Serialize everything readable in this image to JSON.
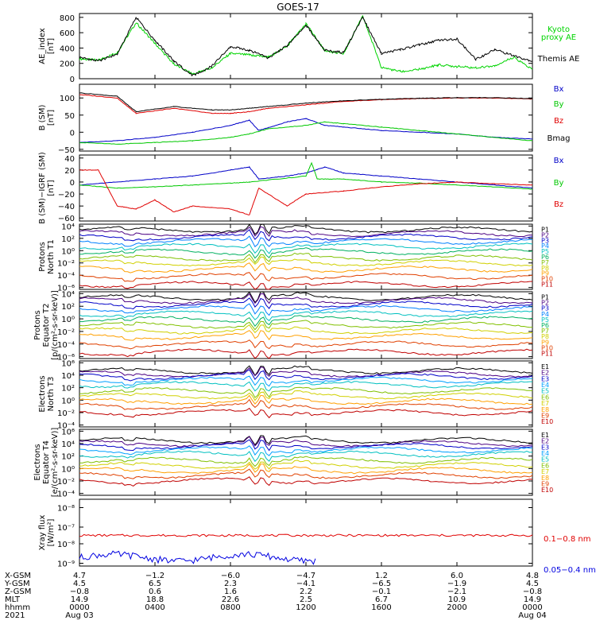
{
  "title": "GOES-17",
  "chart_data": [
    {
      "type": "line",
      "id": "ae",
      "ylabel": "AE_index\n[nT]",
      "ylim": [
        0,
        850
      ],
      "log": false,
      "ticks": [
        "800",
        "600",
        "400",
        "200",
        "0"
      ],
      "tick_values": [
        800,
        600,
        400,
        200,
        0
      ],
      "legend": [
        "Kyoto\nproxy AE",
        "Themis AE"
      ],
      "series": [
        {
          "name": "Kyoto proxy AE",
          "color": "#00d400",
          "points": [
            [
              0,
              260
            ],
            [
              1,
              240
            ],
            [
              2,
              340
            ],
            [
              3,
              730
            ],
            [
              4,
              460
            ],
            [
              5,
              190
            ],
            [
              6,
              60
            ],
            [
              7,
              140
            ],
            [
              8,
              330
            ],
            [
              9,
              310
            ],
            [
              10,
              280
            ],
            [
              11,
              420
            ],
            [
              12,
              720
            ],
            [
              13,
              360
            ],
            [
              14,
              330
            ],
            [
              15,
              820
            ],
            [
              16,
              150
            ],
            [
              17,
              90
            ],
            [
              18,
              120
            ],
            [
              19,
              180
            ],
            [
              20,
              160
            ],
            [
              21,
              140
            ],
            [
              22,
              170
            ],
            [
              23,
              280
            ],
            [
              24,
              120
            ]
          ]
        },
        {
          "name": "Themis AE",
          "color": "#000000",
          "points": [
            [
              0,
              280
            ],
            [
              1,
              230
            ],
            [
              2,
              320
            ],
            [
              3,
              800
            ],
            [
              4,
              500
            ],
            [
              5,
              230
            ],
            [
              6,
              40
            ],
            [
              7,
              160
            ],
            [
              8,
              420
            ],
            [
              9,
              370
            ],
            [
              10,
              270
            ],
            [
              11,
              430
            ],
            [
              12,
              700
            ],
            [
              13,
              370
            ],
            [
              14,
              340
            ],
            [
              15,
              800
            ],
            [
              16,
              330
            ],
            [
              17,
              380
            ],
            [
              18,
              440
            ],
            [
              19,
              500
            ],
            [
              20,
              520
            ],
            [
              21,
              250
            ],
            [
              22,
              380
            ],
            [
              23,
              300
            ],
            [
              24,
              230
            ]
          ]
        }
      ]
    },
    {
      "type": "line",
      "id": "bsm",
      "ylabel": "B (SM)\n[nT]",
      "ylim": [
        -55,
        140
      ],
      "log": false,
      "ticks": [
        "100",
        "50",
        "0",
        "−50"
      ],
      "tick_values": [
        100,
        50,
        0,
        -50
      ],
      "legend": [
        "Bx",
        "By",
        "Bz",
        "Bmag"
      ],
      "series": [
        {
          "name": "Bx",
          "color": "#0000c8",
          "points": [
            [
              0,
              -30
            ],
            [
              2,
              -25
            ],
            [
              4,
              -15
            ],
            [
              6,
              0
            ],
            [
              8,
              20
            ],
            [
              9,
              35
            ],
            [
              9.5,
              5
            ],
            [
              11,
              30
            ],
            [
              12,
              40
            ],
            [
              13,
              20
            ],
            [
              14,
              15
            ],
            [
              16,
              5
            ],
            [
              18,
              0
            ],
            [
              20,
              -5
            ],
            [
              22,
              -15
            ],
            [
              24,
              -20
            ]
          ]
        },
        {
          "name": "By",
          "color": "#00c800",
          "points": [
            [
              0,
              -30
            ],
            [
              2,
              -35
            ],
            [
              4,
              -30
            ],
            [
              6,
              -25
            ],
            [
              8,
              -15
            ],
            [
              9,
              -5
            ],
            [
              10,
              10
            ],
            [
              12,
              20
            ],
            [
              13,
              30
            ],
            [
              14,
              25
            ],
            [
              16,
              15
            ],
            [
              18,
              5
            ],
            [
              20,
              -5
            ],
            [
              22,
              -15
            ],
            [
              24,
              -25
            ]
          ]
        },
        {
          "name": "Bz",
          "color": "#e00000",
          "points": [
            [
              0,
              110
            ],
            [
              2,
              100
            ],
            [
              3,
              55
            ],
            [
              5,
              70
            ],
            [
              7,
              55
            ],
            [
              8,
              55
            ],
            [
              9,
              60
            ],
            [
              10,
              70
            ],
            [
              12,
              80
            ],
            [
              14,
              90
            ],
            [
              16,
              95
            ],
            [
              18,
              98
            ],
            [
              20,
              100
            ],
            [
              22,
              100
            ],
            [
              24,
              97
            ]
          ]
        },
        {
          "name": "Bmag",
          "color": "#000000",
          "points": [
            [
              0,
              115
            ],
            [
              2,
              105
            ],
            [
              3,
              60
            ],
            [
              5,
              75
            ],
            [
              7,
              65
            ],
            [
              8,
              65
            ],
            [
              9,
              70
            ],
            [
              10,
              75
            ],
            [
              12,
              85
            ],
            [
              14,
              92
            ],
            [
              16,
              96
            ],
            [
              18,
              99
            ],
            [
              20,
              101
            ],
            [
              22,
              101
            ],
            [
              24,
              98
            ]
          ]
        }
      ]
    },
    {
      "type": "line",
      "id": "bigrf",
      "ylabel": "B (SM)−IGRF (SM)\n[nT]",
      "ylim": [
        -65,
        45
      ],
      "log": false,
      "ticks": [
        "40",
        "20",
        "0",
        "−20",
        "−40",
        "−60"
      ],
      "tick_values": [
        40,
        20,
        0,
        -20,
        -40,
        -60
      ],
      "legend": [
        "Bx",
        "By",
        "Bz"
      ],
      "series": [
        {
          "name": "Bx",
          "color": "#0000c8",
          "points": [
            [
              0,
              -5
            ],
            [
              2,
              0
            ],
            [
              4,
              5
            ],
            [
              6,
              10
            ],
            [
              8,
              20
            ],
            [
              9,
              25
            ],
            [
              9.5,
              5
            ],
            [
              11,
              10
            ],
            [
              12,
              15
            ],
            [
              13,
              25
            ],
            [
              14,
              15
            ],
            [
              16,
              10
            ],
            [
              18,
              5
            ],
            [
              20,
              0
            ],
            [
              22,
              -5
            ],
            [
              24,
              -10
            ]
          ]
        },
        {
          "name": "By",
          "color": "#00c800",
          "points": [
            [
              0,
              -5
            ],
            [
              2,
              -10
            ],
            [
              4,
              -8
            ],
            [
              6,
              -5
            ],
            [
              8,
              -2
            ],
            [
              9,
              0
            ],
            [
              12,
              10
            ],
            [
              12.3,
              32
            ],
            [
              12.6,
              5
            ],
            [
              14,
              5
            ],
            [
              16,
              0
            ],
            [
              18,
              -2
            ],
            [
              20,
              -5
            ],
            [
              22,
              -8
            ],
            [
              24,
              -12
            ]
          ]
        },
        {
          "name": "Bz",
          "color": "#e00000",
          "points": [
            [
              0,
              20
            ],
            [
              1,
              20
            ],
            [
              2,
              -40
            ],
            [
              3,
              -45
            ],
            [
              4,
              -30
            ],
            [
              5,
              -50
            ],
            [
              6,
              -40
            ],
            [
              8,
              -45
            ],
            [
              9,
              -55
            ],
            [
              9.5,
              -10
            ],
            [
              11,
              -40
            ],
            [
              12,
              -20
            ],
            [
              14,
              -15
            ],
            [
              16,
              -8
            ],
            [
              18,
              -3
            ],
            [
              20,
              0
            ],
            [
              22,
              -3
            ],
            [
              24,
              -5
            ]
          ]
        }
      ]
    },
    {
      "type": "line",
      "id": "protons_t1",
      "ylabel": "Protons\nNorth T1",
      "ylim": [
        -6.3,
        4.3
      ],
      "log": true,
      "ticks": [
        "10⁴",
        "10²",
        "10⁰",
        "10⁻²",
        "10⁻⁴",
        "10⁻⁶"
      ],
      "tick_values": [
        4,
        2,
        0,
        -2,
        -4,
        -6
      ],
      "legend": [
        "P1",
        "P2",
        "P3",
        "P4",
        "P5",
        "P6",
        "P7",
        "P8",
        "P9",
        "P10",
        "P11"
      ],
      "colors": [
        "#000000",
        "#4b0082",
        "#0000c8",
        "#0080ff",
        "#00c0c0",
        "#00b060",
        "#80c000",
        "#d0d000",
        "#ffa000",
        "#e04000",
        "#c00000"
      ],
      "levels": [
        3.4,
        2.8,
        2.2,
        1.5,
        0.7,
        -0.2,
        -1.2,
        -2.0,
        -3.0,
        -4.2,
        -5.5
      ]
    },
    {
      "type": "line",
      "id": "protons_t2",
      "ylabel": "Protons\nEquator T2\n[p/(cm²-s-sr-keV)]",
      "ylim": [
        -6.3,
        4.3
      ],
      "log": true,
      "ticks": [
        "10⁴",
        "10²",
        "10⁰",
        "10⁻²",
        "10⁻⁴",
        "10⁻⁶"
      ],
      "tick_values": [
        4,
        2,
        0,
        -2,
        -4,
        -6
      ],
      "legend": [
        "P1",
        "P2",
        "P3",
        "P4",
        "P5",
        "P6",
        "P7",
        "P8",
        "P9",
        "P10",
        "P11"
      ],
      "colors": [
        "#000000",
        "#4b0082",
        "#0000c8",
        "#0080ff",
        "#00c0c0",
        "#00b060",
        "#80c000",
        "#d0d000",
        "#ffa000",
        "#e04000",
        "#c00000"
      ],
      "levels": [
        3.4,
        2.9,
        2.3,
        1.6,
        0.8,
        -0.1,
        -1.0,
        -1.9,
        -2.8,
        -4.0,
        -5.3
      ]
    },
    {
      "type": "line",
      "id": "electrons_t3",
      "ylabel": "Electrons\nNorth T3",
      "ylim": [
        -4.3,
        6.3
      ],
      "log": true,
      "ticks": [
        "10⁶",
        "10⁴",
        "10²",
        "10⁰",
        "10⁻²",
        "10⁻⁴"
      ],
      "tick_values": [
        6,
        4,
        2,
        0,
        -2,
        -4
      ],
      "legend": [
        "E1",
        "E2",
        "E3",
        "E4",
        "E5",
        "E6",
        "E7",
        "E8",
        "E9",
        "E10"
      ],
      "colors": [
        "#000000",
        "#4b0082",
        "#0000c8",
        "#00a0ff",
        "#00c0c0",
        "#80c000",
        "#d0d000",
        "#ffa000",
        "#e04000",
        "#c00000"
      ],
      "levels": [
        4.7,
        4.2,
        3.8,
        3.2,
        2.5,
        1.5,
        0.7,
        -0.2,
        -1.0,
        -2.0
      ]
    },
    {
      "type": "line",
      "id": "electrons_t4",
      "ylabel": "Electrons\nEquator T4\n[e/(cm²-s-sr-keV)]",
      "ylim": [
        -4.3,
        6.3
      ],
      "log": true,
      "ticks": [
        "10⁶",
        "10⁴",
        "10²",
        "10⁰",
        "10⁻²",
        "10⁻⁴"
      ],
      "tick_values": [
        6,
        4,
        2,
        0,
        -2,
        -4
      ],
      "legend": [
        "E1",
        "E2",
        "E3",
        "E4",
        "E5",
        "E6",
        "E7",
        "E8",
        "E9",
        "E10"
      ],
      "colors": [
        "#000000",
        "#4b0082",
        "#0000c8",
        "#00a0ff",
        "#00c0c0",
        "#80c000",
        "#d0d000",
        "#ffa000",
        "#e04000",
        "#c00000"
      ],
      "levels": [
        4.5,
        4.0,
        3.6,
        3.0,
        2.3,
        1.3,
        0.5,
        -0.3,
        -1.1,
        -2.0
      ]
    },
    {
      "type": "line",
      "id": "xray",
      "ylabel": "Xray flux\n[W/m²]",
      "ylim": [
        -9.1,
        -7.9
      ],
      "log": true,
      "ticks": [
        "10⁻⁸",
        "10⁻⁷",
        "10⁻⁸",
        "10⁻⁹"
      ],
      "tick_values": [
        -8.05,
        -8.4,
        -8.7,
        -9.05
      ],
      "legend": [
        "0.1−0.8 nm",
        "0.05−0.4 nm"
      ],
      "series": [
        {
          "name": "0.1−0.8 nm",
          "color": "#e00000",
          "level": -8.55
        },
        {
          "name": "0.05−0.4 nm",
          "color": "#0000e0",
          "level": -8.95
        }
      ]
    }
  ],
  "x_axis": {
    "rows": [
      {
        "label": "X-GSM",
        "values": [
          "4.7",
          "−1.2",
          "−6.0",
          "−4.7",
          "1.2",
          "6.0",
          "4.8"
        ]
      },
      {
        "label": "Y-GSM",
        "values": [
          "4.5",
          "6.5",
          "2.3",
          "−4.1",
          "−6.5",
          "−1.9",
          "4.5"
        ]
      },
      {
        "label": "Z-GSM",
        "values": [
          "−0.8",
          "0.6",
          "1.6",
          "2.2",
          "−0.1",
          "−2.1",
          "−0.8"
        ]
      },
      {
        "label": "MLT",
        "values": [
          "14.9",
          "18.8",
          "22.6",
          "2.5",
          "6.7",
          "10.9",
          "14.9"
        ]
      },
      {
        "label": "hhmm",
        "values": [
          "0000",
          "0400",
          "0800",
          "1200",
          "1600",
          "2000",
          "0000"
        ]
      },
      {
        "label": "2021",
        "values": [
          "Aug 03",
          "",
          "",
          "",
          "",
          "",
          "Aug 04"
        ]
      }
    ],
    "tick_hours": [
      0,
      4,
      8,
      12,
      16,
      20,
      24
    ]
  },
  "colors": {
    "axis": "#000000",
    "ae_green": "#00d400",
    "bx": "#0000c8",
    "by": "#00c800",
    "bz": "#e00000",
    "xray_long": "#e00000",
    "xray_short": "#0000e0"
  }
}
